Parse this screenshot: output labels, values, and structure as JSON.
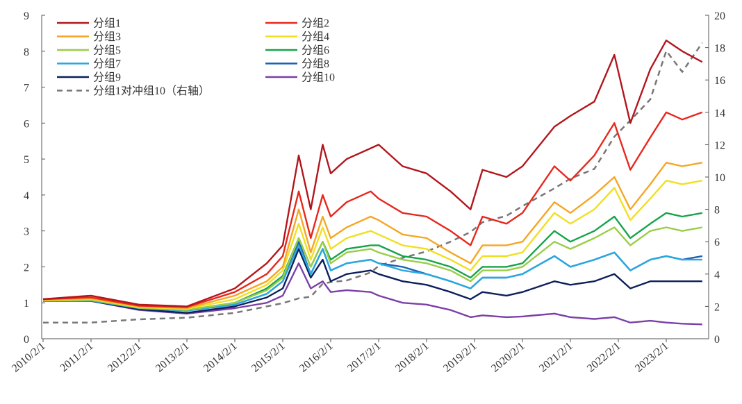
{
  "chart_data": {
    "type": "line",
    "x_tick_labels": [
      "2010/2/1",
      "2011/2/1",
      "2012/2/1",
      "2013/2/1",
      "2014/2/1",
      "2015/2/1",
      "2016/2/1",
      "2017/2/1",
      "2018/2/1",
      "2019/2/1",
      "2020/2/1",
      "2021/2/1",
      "2022/2/1",
      "2023/2/1"
    ],
    "x": [
      "2010/2/1",
      "2011/2/1",
      "2012/2/1",
      "2013/2/1",
      "2014/2/1",
      "2014/10/1",
      "2015/2/1",
      "2015/6/1",
      "2015/9/1",
      "2015/12/1",
      "2016/2/1",
      "2016/6/1",
      "2016/12/1",
      "2017/2/1",
      "2017/8/1",
      "2018/2/1",
      "2018/8/1",
      "2019/1/1",
      "2019/4/1",
      "2019/10/1",
      "2020/2/1",
      "2020/10/1",
      "2021/2/1",
      "2021/8/1",
      "2022/1/1",
      "2022/5/1",
      "2022/10/1",
      "2023/2/1",
      "2023/6/1",
      "2023/11/1"
    ],
    "y_left": {
      "min": 0,
      "max": 9,
      "ticks": [
        "0",
        "1",
        "2",
        "3",
        "4",
        "5",
        "6",
        "7",
        "8",
        "9"
      ]
    },
    "y_right": {
      "min": 0,
      "max": 20,
      "ticks": [
        "0",
        "2",
        "4",
        "6",
        "8",
        "10",
        "12",
        "14",
        "16",
        "18",
        "20"
      ]
    },
    "series": [
      {
        "name": "分组1",
        "color": "#b2161c",
        "axis": "left",
        "dash": false,
        "values": [
          1.1,
          1.2,
          0.95,
          0.9,
          1.4,
          2.1,
          2.6,
          5.1,
          3.6,
          5.4,
          4.6,
          5.0,
          5.3,
          5.4,
          4.8,
          4.6,
          4.1,
          3.6,
          4.7,
          4.5,
          4.8,
          5.9,
          6.2,
          6.6,
          7.9,
          6.0,
          7.5,
          8.3,
          8.0,
          7.7
        ]
      },
      {
        "name": "分组2",
        "color": "#e8271c",
        "axis": "left",
        "dash": false,
        "values": [
          1.1,
          1.15,
          0.92,
          0.88,
          1.3,
          1.8,
          2.3,
          4.1,
          2.8,
          4.0,
          3.4,
          3.8,
          4.1,
          3.9,
          3.5,
          3.4,
          3.0,
          2.6,
          3.4,
          3.2,
          3.5,
          4.8,
          4.4,
          5.1,
          6.0,
          4.7,
          5.6,
          6.3,
          6.1,
          6.3
        ]
      },
      {
        "name": "分组3",
        "color": "#f5a623",
        "axis": "left",
        "dash": false,
        "values": [
          1.08,
          1.12,
          0.9,
          0.85,
          1.2,
          1.6,
          2.0,
          3.6,
          2.4,
          3.4,
          2.8,
          3.1,
          3.4,
          3.3,
          2.9,
          2.8,
          2.4,
          2.1,
          2.6,
          2.6,
          2.7,
          3.8,
          3.5,
          4.0,
          4.5,
          3.6,
          4.3,
          4.9,
          4.8,
          4.9
        ]
      },
      {
        "name": "分组4",
        "color": "#f0e020",
        "axis": "left",
        "dash": false,
        "values": [
          1.07,
          1.1,
          0.88,
          0.83,
          1.1,
          1.5,
          1.9,
          3.2,
          2.2,
          3.1,
          2.5,
          2.8,
          3.0,
          2.9,
          2.6,
          2.5,
          2.2,
          1.9,
          2.3,
          2.3,
          2.4,
          3.5,
          3.2,
          3.6,
          4.2,
          3.3,
          3.9,
          4.4,
          4.3,
          4.4
        ]
      },
      {
        "name": "分组5",
        "color": "#9acd46",
        "axis": "left",
        "dash": false,
        "values": [
          1.06,
          1.08,
          0.86,
          0.8,
          1.0,
          1.35,
          1.7,
          2.8,
          2.0,
          2.7,
          2.1,
          2.4,
          2.5,
          2.4,
          2.2,
          2.1,
          1.9,
          1.6,
          1.9,
          1.9,
          2.0,
          2.7,
          2.5,
          2.8,
          3.1,
          2.6,
          3.0,
          3.1,
          3.0,
          3.1
        ]
      },
      {
        "name": "分组6",
        "color": "#17a34a",
        "axis": "left",
        "dash": false,
        "values": [
          1.06,
          1.08,
          0.86,
          0.8,
          1.0,
          1.4,
          1.75,
          2.8,
          2.0,
          2.7,
          2.2,
          2.5,
          2.6,
          2.6,
          2.3,
          2.2,
          2.0,
          1.7,
          2.0,
          2.0,
          2.1,
          3.0,
          2.7,
          3.0,
          3.4,
          2.8,
          3.2,
          3.5,
          3.4,
          3.5
        ]
      },
      {
        "name": "分组7",
        "color": "#29a8e0",
        "axis": "left",
        "dash": false,
        "values": [
          1.05,
          1.06,
          0.85,
          0.78,
          0.95,
          1.25,
          1.6,
          2.6,
          1.8,
          2.5,
          1.9,
          2.1,
          2.2,
          2.1,
          1.9,
          1.8,
          1.6,
          1.4,
          1.7,
          1.7,
          1.8,
          2.3,
          2.0,
          2.2,
          2.4,
          1.9,
          2.2,
          2.3,
          2.2,
          2.2
        ]
      },
      {
        "name": "分组8",
        "color": "#1a62b5",
        "axis": "left",
        "dash": false,
        "values": [
          1.05,
          1.06,
          0.85,
          0.78,
          0.95,
          1.25,
          1.6,
          2.7,
          1.8,
          2.5,
          1.9,
          2.1,
          2.2,
          2.1,
          2.0,
          1.8,
          1.6,
          1.4,
          1.7,
          1.7,
          1.8,
          2.3,
          2.0,
          2.2,
          2.4,
          1.9,
          2.2,
          2.3,
          2.2,
          2.3
        ]
      },
      {
        "name": "分组9",
        "color": "#0d1f5c",
        "axis": "left",
        "dash": false,
        "values": [
          1.05,
          1.05,
          0.82,
          0.72,
          0.9,
          1.15,
          1.4,
          2.5,
          1.7,
          2.2,
          1.6,
          1.8,
          1.9,
          1.8,
          1.6,
          1.5,
          1.3,
          1.1,
          1.3,
          1.2,
          1.3,
          1.6,
          1.5,
          1.6,
          1.8,
          1.4,
          1.6,
          1.6,
          1.6,
          1.6
        ]
      },
      {
        "name": "分组10",
        "color": "#7b3fa8",
        "axis": "left",
        "dash": false,
        "values": [
          1.05,
          1.05,
          0.8,
          0.7,
          0.85,
          1.0,
          1.2,
          2.1,
          1.4,
          1.6,
          1.3,
          1.35,
          1.3,
          1.2,
          1.0,
          0.95,
          0.8,
          0.6,
          0.65,
          0.6,
          0.62,
          0.7,
          0.6,
          0.55,
          0.6,
          0.45,
          0.5,
          0.45,
          0.42,
          0.4
        ]
      },
      {
        "name": "分组1对冲组10（右轴）",
        "color": "#777777",
        "axis": "right",
        "dash": true,
        "values": [
          1.0,
          1.0,
          1.2,
          1.3,
          1.6,
          2.0,
          2.2,
          2.5,
          2.6,
          3.4,
          3.5,
          3.6,
          4.1,
          4.5,
          5.0,
          5.4,
          6.0,
          6.6,
          7.2,
          7.6,
          8.2,
          9.3,
          9.9,
          10.5,
          12.5,
          13.5,
          14.8,
          17.8,
          16.5,
          18.3
        ]
      }
    ]
  }
}
